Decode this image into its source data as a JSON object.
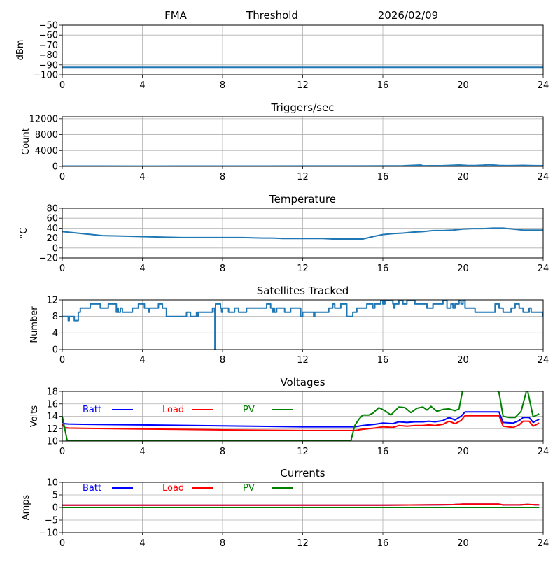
{
  "header": {
    "station": "FMA",
    "mode": "Threshold",
    "date": "2026/02/09"
  },
  "chart_data": [
    {
      "type": "line",
      "title": "",
      "xlabel": "",
      "ylabel": "dBm",
      "xlim": [
        0,
        24
      ],
      "ylim": [
        -100,
        -50
      ],
      "xticks": [
        0,
        4,
        8,
        12,
        16,
        20,
        24
      ],
      "yticks": [
        -100,
        -90,
        -80,
        -70,
        -60,
        -50
      ],
      "ytick_labels": [
        "−100",
        "−90",
        "−80",
        "−70",
        "−60",
        "−50"
      ],
      "grid": true,
      "series": [
        {
          "name": "Threshold",
          "color": "#1f77b4",
          "x": [
            0,
            24
          ],
          "y": [
            -92.5,
            -92.5
          ]
        }
      ]
    },
    {
      "type": "line",
      "title": "Triggers/sec",
      "xlabel": "",
      "ylabel": "Count",
      "xlim": [
        0,
        24
      ],
      "ylim": [
        0,
        12500
      ],
      "xticks": [
        0,
        4,
        8,
        12,
        16,
        20,
        24
      ],
      "yticks": [
        0,
        4000,
        8000,
        12000
      ],
      "ytick_labels": [
        "0",
        "4000",
        "8000",
        "12000"
      ],
      "grid": true,
      "series": [
        {
          "name": "Triggers",
          "color": "#1f77b4",
          "x": [
            0,
            2,
            4,
            6,
            8,
            10,
            12,
            14,
            16,
            17,
            17.9,
            18,
            18.5,
            19,
            19.5,
            19.8,
            20.2,
            20.6,
            21,
            21.3,
            21.5,
            21.8,
            22.2,
            22.6,
            23,
            23.5,
            24
          ],
          "y": [
            80,
            90,
            70,
            80,
            90,
            80,
            100,
            110,
            120,
            160,
            350,
            150,
            180,
            200,
            280,
            350,
            250,
            220,
            300,
            400,
            350,
            250,
            200,
            220,
            260,
            200,
            180
          ]
        }
      ]
    },
    {
      "type": "line",
      "title": "Temperature",
      "xlabel": "",
      "ylabel": "°C",
      "xlim": [
        0,
        24
      ],
      "ylim": [
        -20,
        80
      ],
      "xticks": [
        0,
        4,
        8,
        12,
        16,
        20,
        24
      ],
      "yticks": [
        -20,
        0,
        20,
        40,
        60,
        80
      ],
      "ytick_labels": [
        "−20",
        "0",
        "20",
        "40",
        "60",
        "80"
      ],
      "grid": true,
      "series": [
        {
          "name": "Temperature",
          "color": "#1f77b4",
          "x": [
            0,
            0.5,
            1,
            1.5,
            2,
            3,
            4,
            5,
            6,
            7,
            8,
            9,
            10,
            10.5,
            11,
            12,
            13,
            13.5,
            14,
            15,
            15.5,
            16,
            16.5,
            17,
            17.5,
            18,
            18.5,
            19,
            19.5,
            20,
            20.5,
            21,
            21.5,
            22,
            22.5,
            23,
            24
          ],
          "y": [
            33,
            31,
            29,
            27,
            25,
            24,
            23,
            22,
            21,
            21,
            21,
            21,
            20,
            20,
            19,
            19,
            19,
            18,
            18,
            18,
            23,
            27,
            29,
            30,
            32,
            33,
            35,
            35,
            36,
            38,
            39,
            39,
            40,
            40,
            38,
            36,
            36
          ]
        }
      ]
    },
    {
      "type": "line",
      "title": "Satellites Tracked",
      "xlabel": "",
      "ylabel": "Number",
      "xlim": [
        0,
        24
      ],
      "ylim": [
        0,
        12
      ],
      "xticks": [
        0,
        4,
        8,
        12,
        16,
        20,
        24
      ],
      "yticks": [
        0,
        4,
        8,
        12
      ],
      "ytick_labels": [
        "0",
        "4",
        "8",
        "12"
      ],
      "grid": true,
      "series": [
        {
          "name": "Satellites",
          "color": "#1f77b4",
          "step": true,
          "x": [
            0,
            0.3,
            0.35,
            0.4,
            0.6,
            0.8,
            0.85,
            0.9,
            1.4,
            1.9,
            2.3,
            2.7,
            2.75,
            2.8,
            2.9,
            3.0,
            3.1,
            3.2,
            3.5,
            3.8,
            4.1,
            4.3,
            4.35,
            4.6,
            4.8,
            5.0,
            5.2,
            6.2,
            6.4,
            6.7,
            6.75,
            6.8,
            7.0,
            7.1,
            7.3,
            7.5,
            7.6,
            7.62,
            7.65,
            7.7,
            7.9,
            7.95,
            8.0,
            8.3,
            8.5,
            8.6,
            8.8,
            9.2,
            9.4,
            10.2,
            10.4,
            10.5,
            10.55,
            10.6,
            10.7,
            10.9,
            11.1,
            11.4,
            11.7,
            11.9,
            12.0,
            12.5,
            12.55,
            12.6,
            12.7,
            13.3,
            13.5,
            13.6,
            13.9,
            14.2,
            14.4,
            14.5,
            14.7,
            15.0,
            15.2,
            15.4,
            15.5,
            15.6,
            15.9,
            16.0,
            16.1,
            16.5,
            16.55,
            16.6,
            16.8,
            17.0,
            17.2,
            17.6,
            18.0,
            18.2,
            18.5,
            19.0,
            19.2,
            19.4,
            19.5,
            19.6,
            19.8,
            19.9,
            20.0,
            20.1,
            20.3,
            20.6,
            21.0,
            21.6,
            21.8,
            22.0,
            22.4,
            22.6,
            22.8,
            23.0,
            23.3,
            23.4,
            23.9,
            24
          ],
          "y": [
            8,
            7,
            8,
            8,
            7,
            9,
            9,
            10,
            11,
            10,
            11,
            9,
            10,
            9,
            10,
            9,
            9,
            9,
            10,
            11,
            10,
            9,
            10,
            10,
            11,
            10,
            8,
            9,
            8,
            9,
            8,
            9,
            9,
            9,
            9,
            10,
            9,
            0,
            11,
            11,
            10,
            9,
            10,
            9,
            9,
            10,
            9,
            10,
            10,
            11,
            10,
            9,
            10,
            9,
            10,
            10,
            9,
            10,
            10,
            8,
            9,
            9,
            8,
            9,
            9,
            10,
            11,
            10,
            11,
            8,
            8,
            9,
            10,
            10,
            11,
            11,
            10,
            11,
            12,
            11,
            12,
            11,
            10,
            11,
            12,
            11,
            12,
            11,
            11,
            10,
            11,
            12,
            10,
            11,
            10,
            11,
            12,
            11,
            12,
            10,
            10,
            9,
            9,
            11,
            10,
            9,
            10,
            11,
            10,
            9,
            10,
            9,
            9,
            8
          ]
        }
      ]
    },
    {
      "type": "line",
      "title": "Voltages",
      "xlabel": "",
      "ylabel": "Volts",
      "xlim": [
        0,
        24
      ],
      "ylim": [
        10,
        18
      ],
      "xticks": [
        0,
        4,
        8,
        12,
        16,
        20,
        24
      ],
      "yticks": [
        10,
        12,
        14,
        16,
        18
      ],
      "ytick_labels": [
        "10",
        "12",
        "14",
        "16",
        "18"
      ],
      "grid": true,
      "legend": [
        {
          "label": "Batt",
          "color": "#0000ff"
        },
        {
          "label": "Load",
          "color": "#ff0000"
        },
        {
          "label": "PV",
          "color": "#008000"
        }
      ],
      "series": [
        {
          "name": "Batt",
          "color": "#0000ff",
          "x": [
            0,
            0.1,
            0.3,
            1,
            4,
            8,
            12,
            14.6,
            15,
            15.6,
            16,
            16.5,
            16.8,
            17.2,
            17.6,
            18,
            18.3,
            18.6,
            19,
            19.3,
            19.6,
            19.9,
            20.1,
            21.8,
            22,
            22.5,
            22.8,
            23,
            23.3,
            23.5,
            23.8
          ],
          "y": [
            13.2,
            12.8,
            12.75,
            12.7,
            12.6,
            12.45,
            12.3,
            12.3,
            12.5,
            12.7,
            12.9,
            12.8,
            13.1,
            13.0,
            13.1,
            13.1,
            13.2,
            13.1,
            13.3,
            13.8,
            13.4,
            14.0,
            14.7,
            14.7,
            13.0,
            12.9,
            13.3,
            13.8,
            13.8,
            13.0,
            13.5
          ]
        },
        {
          "name": "Load",
          "color": "#ff0000",
          "x": [
            0,
            0.1,
            0.3,
            1,
            4,
            8,
            12,
            14.6,
            15,
            15.6,
            16,
            16.5,
            16.8,
            17.2,
            17.6,
            18,
            18.3,
            18.6,
            19,
            19.3,
            19.6,
            19.9,
            20.1,
            21.8,
            22,
            22.5,
            22.8,
            23,
            23.3,
            23.5,
            23.8
          ],
          "y": [
            12.7,
            12.2,
            12.1,
            12.05,
            11.95,
            11.8,
            11.7,
            11.7,
            11.9,
            12.1,
            12.3,
            12.2,
            12.5,
            12.4,
            12.5,
            12.5,
            12.6,
            12.5,
            12.7,
            13.2,
            12.8,
            13.3,
            14.1,
            14.1,
            12.4,
            12.2,
            12.6,
            13.2,
            13.2,
            12.4,
            12.9
          ]
        },
        {
          "name": "PV",
          "color": "#008000",
          "x": [
            0,
            0.25,
            14.4,
            14.6,
            14.8,
            15.0,
            15.3,
            15.5,
            15.8,
            16.1,
            16.4,
            16.8,
            17.1,
            17.4,
            17.7,
            18.0,
            18.2,
            18.4,
            18.7,
            19.0,
            19.3,
            19.6,
            19.8,
            20.0,
            21.6,
            21.8,
            22.0,
            22.3,
            22.6,
            22.9,
            23.2,
            23.5,
            23.8
          ],
          "y": [
            14.0,
            10.0,
            10.0,
            12.5,
            13.5,
            14.2,
            14.2,
            14.5,
            15.4,
            14.9,
            14.2,
            15.5,
            15.4,
            14.6,
            15.3,
            15.5,
            15.0,
            15.6,
            14.8,
            15.1,
            15.2,
            14.9,
            15.2,
            18.5,
            18.5,
            17.8,
            14.0,
            13.8,
            13.8,
            14.8,
            18.5,
            13.9,
            14.4
          ]
        }
      ]
    },
    {
      "type": "line",
      "title": "Currents",
      "xlabel": "",
      "ylabel": "Amps",
      "xlim": [
        0,
        24
      ],
      "ylim": [
        -10,
        10
      ],
      "xticks": [
        0,
        4,
        8,
        12,
        16,
        20,
        24
      ],
      "yticks": [
        -10,
        -5,
        0,
        5,
        10
      ],
      "ytick_labels": [
        "−10",
        "−5",
        "0",
        "5",
        "10"
      ],
      "grid": true,
      "legend": [
        {
          "label": "Batt",
          "color": "#0000ff"
        },
        {
          "label": "Load",
          "color": "#ff0000"
        },
        {
          "label": "PV",
          "color": "#008000"
        }
      ],
      "series": [
        {
          "name": "Batt",
          "color": "#0000ff",
          "x": [
            0,
            16,
            18,
            19.5,
            20,
            21.8,
            22,
            22.8,
            23.2,
            23.8
          ],
          "y": [
            0.9,
            0.9,
            1.0,
            1.1,
            1.3,
            1.3,
            1.0,
            1.0,
            1.2,
            1.0
          ]
        },
        {
          "name": "Load",
          "color": "#ff0000",
          "x": [
            0,
            16,
            18,
            19.5,
            20,
            21.8,
            22,
            22.8,
            23.2,
            23.8
          ],
          "y": [
            0.9,
            0.9,
            1.0,
            1.1,
            1.3,
            1.3,
            1.0,
            1.0,
            1.2,
            1.0
          ]
        },
        {
          "name": "PV",
          "color": "#008000",
          "x": [
            0,
            23.8
          ],
          "y": [
            0.0,
            0.0
          ]
        }
      ]
    }
  ]
}
